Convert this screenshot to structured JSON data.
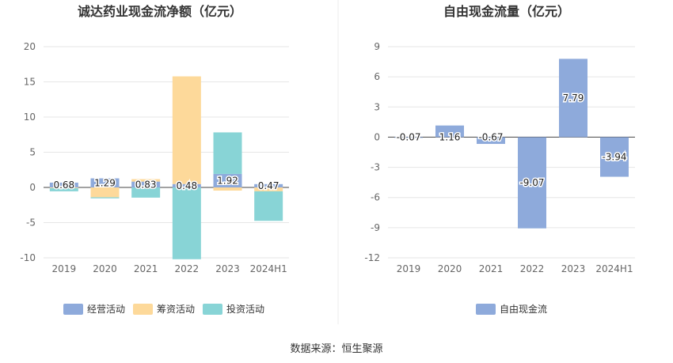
{
  "source_label": "数据来源：恒生聚源",
  "chart_data": [
    {
      "type": "bar",
      "stacked": true,
      "title": "诚达药业现金流净额（亿元）",
      "categories": [
        "2019",
        "2020",
        "2021",
        "2022",
        "2023",
        "2024H1"
      ],
      "ylim": [
        -10,
        20
      ],
      "yticks": [
        20,
        15,
        10,
        5,
        0,
        -5,
        -10
      ],
      "grid": true,
      "legend_position": "bottom",
      "series": [
        {
          "name": "经营活动",
          "color": "#8eaadb",
          "values": [
            0.68,
            1.29,
            0.83,
            0.48,
            1.92,
            0.47
          ]
        },
        {
          "name": "筹资活动",
          "color": "#fdd99a",
          "values": [
            -0.1,
            -1.4,
            0.35,
            15.3,
            -0.45,
            -0.55
          ]
        },
        {
          "name": "投资活动",
          "color": "#88d4d6",
          "values": [
            -0.45,
            -0.15,
            -1.45,
            -10.2,
            5.9,
            -4.2
          ]
        }
      ],
      "data_labels": [
        "0.68",
        "1.29",
        "0.83",
        "0.48",
        "1.92",
        "0.47"
      ]
    },
    {
      "type": "bar",
      "title": "自由现金流量（亿元）",
      "categories": [
        "2019",
        "2020",
        "2021",
        "2022",
        "2023",
        "2024H1"
      ],
      "ylim": [
        -12,
        9
      ],
      "yticks": [
        9,
        6,
        3,
        0,
        -3,
        -6,
        -9,
        -12
      ],
      "grid": true,
      "legend_position": "bottom",
      "series": [
        {
          "name": "自由现金流",
          "color": "#8eaadb",
          "values": [
            -0.07,
            1.16,
            -0.67,
            -9.07,
            7.79,
            -3.94
          ]
        }
      ],
      "data_labels": [
        "-0.07",
        "1.16",
        "-0.67",
        "-9.07",
        "7.79",
        "-3.94"
      ]
    }
  ]
}
